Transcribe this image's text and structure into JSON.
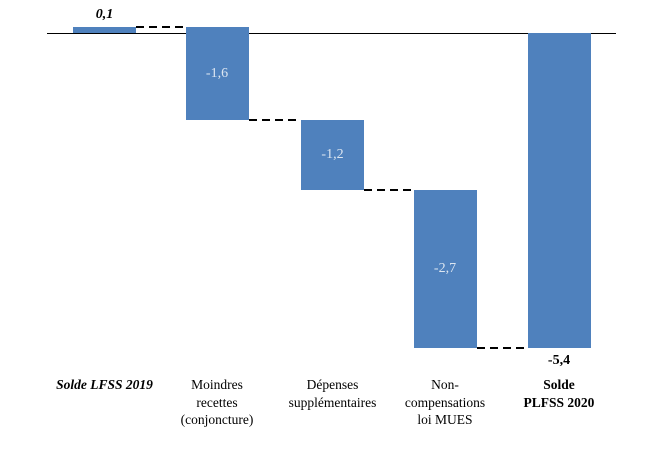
{
  "chart_data": {
    "type": "bar",
    "subtype": "waterfall",
    "title": "",
    "xlabel": "",
    "ylabel": "",
    "categories": [
      "Solde LFSS 2019",
      "Moindres\nrecettes\n(conjoncture)",
      "Dépenses\nsupplémentaires",
      "Non-\ncompensations\nloi MUES",
      "Solde\nPLFSS 2020"
    ],
    "values": [
      0.1,
      -1.6,
      -1.2,
      -2.7,
      -5.4
    ],
    "value_labels": [
      "0,1",
      "-1,6",
      "-1,2",
      "-2,7",
      "-5,4"
    ],
    "bar_roles": [
      "start",
      "delta",
      "delta",
      "delta",
      "total"
    ],
    "bar_spans": [
      [
        0,
        0.1
      ],
      [
        0.1,
        -1.5
      ],
      [
        -1.5,
        -2.7
      ],
      [
        -2.7,
        -5.4
      ],
      [
        0,
        -5.4
      ]
    ],
    "cumulative_levels": [
      0.1,
      -1.5,
      -2.7,
      -5.4,
      -5.4
    ],
    "label_positions": [
      "above",
      "inside",
      "inside",
      "inside",
      "below"
    ],
    "connectors": [
      {
        "from": 0,
        "to": 1,
        "level": 0.1
      },
      {
        "from": 1,
        "to": 2,
        "level": -1.5
      },
      {
        "from": 2,
        "to": 3,
        "level": -2.7
      },
      {
        "from": 3,
        "to": 4,
        "level": -5.4
      }
    ],
    "axis": {
      "zero_line": true,
      "y_axis_visible": false,
      "gridlines": false,
      "y_implied_range": [
        -5.4,
        0.1
      ],
      "connector_style": "dashed"
    },
    "legend": {
      "visible": false
    },
    "colors": {
      "bar_fill": "#4F81BD",
      "inside_label": "#DCE6F1",
      "outside_label": "#000000",
      "connector": "#000000",
      "baseline": "#000000",
      "background": "#FFFFFF"
    }
  }
}
